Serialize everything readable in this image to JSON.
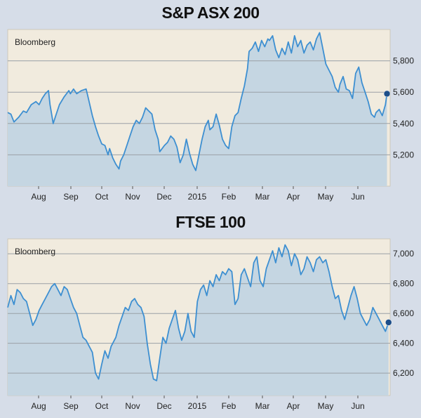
{
  "chart_data": [
    {
      "type": "area",
      "title": "S&P ASX 200",
      "source": "Bloomberg",
      "x_tick_labels": [
        "Aug",
        "Sep",
        "Oct",
        "Nov",
        "Dec",
        "2015",
        "Feb",
        "Mar",
        "Apr",
        "May",
        "Jun"
      ],
      "y_ticks": [
        5200,
        5400,
        5600,
        5800
      ],
      "y_tick_labels": [
        "5,200",
        "5,400",
        "5,600",
        "5,800"
      ],
      "ylim": [
        5000,
        6000
      ],
      "xlim": [
        0,
        12.2
      ],
      "grid": true,
      "line_color": "#3d8fd1",
      "x": [
        0.0,
        0.1,
        0.2,
        0.35,
        0.5,
        0.6,
        0.75,
        0.9,
        1.0,
        1.1,
        1.2,
        1.3,
        1.35,
        1.45,
        1.55,
        1.65,
        1.8,
        1.95,
        2.0,
        2.1,
        2.2,
        2.35,
        2.5,
        2.55,
        2.7,
        2.8,
        2.9,
        3.0,
        3.1,
        3.2,
        3.25,
        3.35,
        3.45,
        3.55,
        3.6,
        3.7,
        3.8,
        3.9,
        4.0,
        4.1,
        4.2,
        4.3,
        4.4,
        4.5,
        4.6,
        4.7,
        4.8,
        4.85,
        5.0,
        5.1,
        5.2,
        5.3,
        5.4,
        5.5,
        5.6,
        5.7,
        5.8,
        5.9,
        6.0,
        6.1,
        6.2,
        6.3,
        6.4,
        6.45,
        6.55,
        6.65,
        6.75,
        6.85,
        6.95,
        7.05,
        7.15,
        7.25,
        7.35,
        7.45,
        7.55,
        7.65,
        7.7,
        7.8,
        7.9,
        8.0,
        8.1,
        8.2,
        8.3,
        8.35,
        8.45,
        8.55,
        8.65,
        8.75,
        8.85,
        8.95,
        9.05,
        9.15,
        9.25,
        9.35,
        9.45,
        9.55,
        9.65,
        9.75,
        9.85,
        9.95,
        10.05,
        10.15,
        10.25,
        10.35,
        10.45,
        10.55,
        10.6,
        10.7,
        10.8,
        10.9,
        11.0,
        11.1,
        11.2,
        11.3,
        11.4,
        11.5,
        11.6,
        11.7,
        11.75,
        11.85,
        11.95,
        12.05,
        12.1
      ],
      "y": [
        5470,
        5460,
        5410,
        5440,
        5480,
        5470,
        5520,
        5540,
        5520,
        5560,
        5590,
        5610,
        5520,
        5400,
        5460,
        5520,
        5570,
        5610,
        5590,
        5620,
        5590,
        5610,
        5620,
        5580,
        5450,
        5380,
        5320,
        5270,
        5260,
        5200,
        5240,
        5180,
        5140,
        5110,
        5160,
        5200,
        5260,
        5320,
        5380,
        5420,
        5400,
        5440,
        5500,
        5480,
        5460,
        5360,
        5300,
        5220,
        5260,
        5280,
        5320,
        5300,
        5250,
        5150,
        5200,
        5300,
        5210,
        5140,
        5100,
        5200,
        5300,
        5380,
        5420,
        5360,
        5380,
        5460,
        5390,
        5300,
        5260,
        5240,
        5380,
        5450,
        5470,
        5560,
        5640,
        5750,
        5860,
        5880,
        5920,
        5860,
        5930,
        5890,
        5940,
        5930,
        5960,
        5870,
        5820,
        5880,
        5840,
        5920,
        5850,
        5960,
        5890,
        5930,
        5850,
        5900,
        5920,
        5870,
        5940,
        5980,
        5880,
        5780,
        5740,
        5700,
        5630,
        5600,
        5650,
        5700,
        5620,
        5610,
        5560,
        5720,
        5760,
        5660,
        5600,
        5540,
        5460,
        5440,
        5470,
        5490,
        5450,
        5520,
        5590
      ]
    },
    {
      "type": "area",
      "title": "FTSE 100",
      "source": "Bloomberg",
      "x_tick_labels": [
        "Aug",
        "Sep",
        "Oct",
        "Nov",
        "Dec",
        "2015",
        "Feb",
        "Mar",
        "Apr",
        "May",
        "Jun"
      ],
      "y_ticks": [
        6200,
        6400,
        6600,
        6800,
        7000
      ],
      "y_tick_labels": [
        "6,200",
        "6,400",
        "6,600",
        "6,800",
        "7,000"
      ],
      "ylim": [
        6050,
        7100
      ],
      "xlim": [
        0,
        12.2
      ],
      "grid": true,
      "line_color": "#3d8fd1",
      "x": [
        0.0,
        0.1,
        0.2,
        0.3,
        0.4,
        0.5,
        0.6,
        0.7,
        0.8,
        0.9,
        1.0,
        1.1,
        1.2,
        1.3,
        1.4,
        1.5,
        1.6,
        1.7,
        1.8,
        1.9,
        2.0,
        2.1,
        2.2,
        2.3,
        2.4,
        2.5,
        2.6,
        2.7,
        2.8,
        2.9,
        3.0,
        3.1,
        3.2,
        3.3,
        3.35,
        3.45,
        3.55,
        3.65,
        3.75,
        3.85,
        3.95,
        4.05,
        4.15,
        4.25,
        4.35,
        4.45,
        4.55,
        4.65,
        4.75,
        4.85,
        4.95,
        5.05,
        5.15,
        5.25,
        5.35,
        5.45,
        5.55,
        5.65,
        5.75,
        5.85,
        5.95,
        6.05,
        6.15,
        6.25,
        6.35,
        6.45,
        6.55,
        6.65,
        6.75,
        6.85,
        6.95,
        7.05,
        7.15,
        7.25,
        7.35,
        7.45,
        7.55,
        7.65,
        7.75,
        7.85,
        7.95,
        8.05,
        8.15,
        8.25,
        8.35,
        8.45,
        8.55,
        8.65,
        8.75,
        8.85,
        8.95,
        9.05,
        9.15,
        9.25,
        9.35,
        9.45,
        9.55,
        9.65,
        9.75,
        9.85,
        9.95,
        10.05,
        10.15,
        10.25,
        10.35,
        10.45,
        10.55,
        10.65,
        10.75,
        10.85,
        10.95,
        11.05,
        11.15,
        11.25,
        11.35,
        11.45,
        11.55,
        11.65,
        11.75,
        11.85,
        11.95,
        12.05,
        12.15
      ],
      "y": [
        6640,
        6720,
        6660,
        6760,
        6740,
        6700,
        6680,
        6600,
        6520,
        6560,
        6620,
        6660,
        6700,
        6740,
        6780,
        6800,
        6760,
        6720,
        6780,
        6760,
        6700,
        6640,
        6600,
        6520,
        6440,
        6420,
        6380,
        6340,
        6200,
        6160,
        6260,
        6350,
        6300,
        6380,
        6400,
        6440,
        6520,
        6580,
        6640,
        6620,
        6680,
        6700,
        6660,
        6640,
        6580,
        6400,
        6260,
        6160,
        6150,
        6300,
        6440,
        6400,
        6500,
        6560,
        6620,
        6500,
        6420,
        6480,
        6600,
        6480,
        6440,
        6680,
        6760,
        6790,
        6720,
        6820,
        6780,
        6860,
        6820,
        6880,
        6860,
        6900,
        6880,
        6660,
        6700,
        6860,
        6900,
        6840,
        6780,
        6940,
        6980,
        6820,
        6780,
        6900,
        6960,
        7020,
        6940,
        7040,
        6980,
        7060,
        7020,
        6920,
        7000,
        6960,
        6860,
        6900,
        6980,
        6940,
        6880,
        6960,
        6980,
        6940,
        6960,
        6880,
        6780,
        6700,
        6720,
        6620,
        6560,
        6640,
        6720,
        6780,
        6700,
        6600,
        6560,
        6520,
        6560,
        6640,
        6600,
        6560,
        6520,
        6480,
        6540
      ]
    }
  ]
}
